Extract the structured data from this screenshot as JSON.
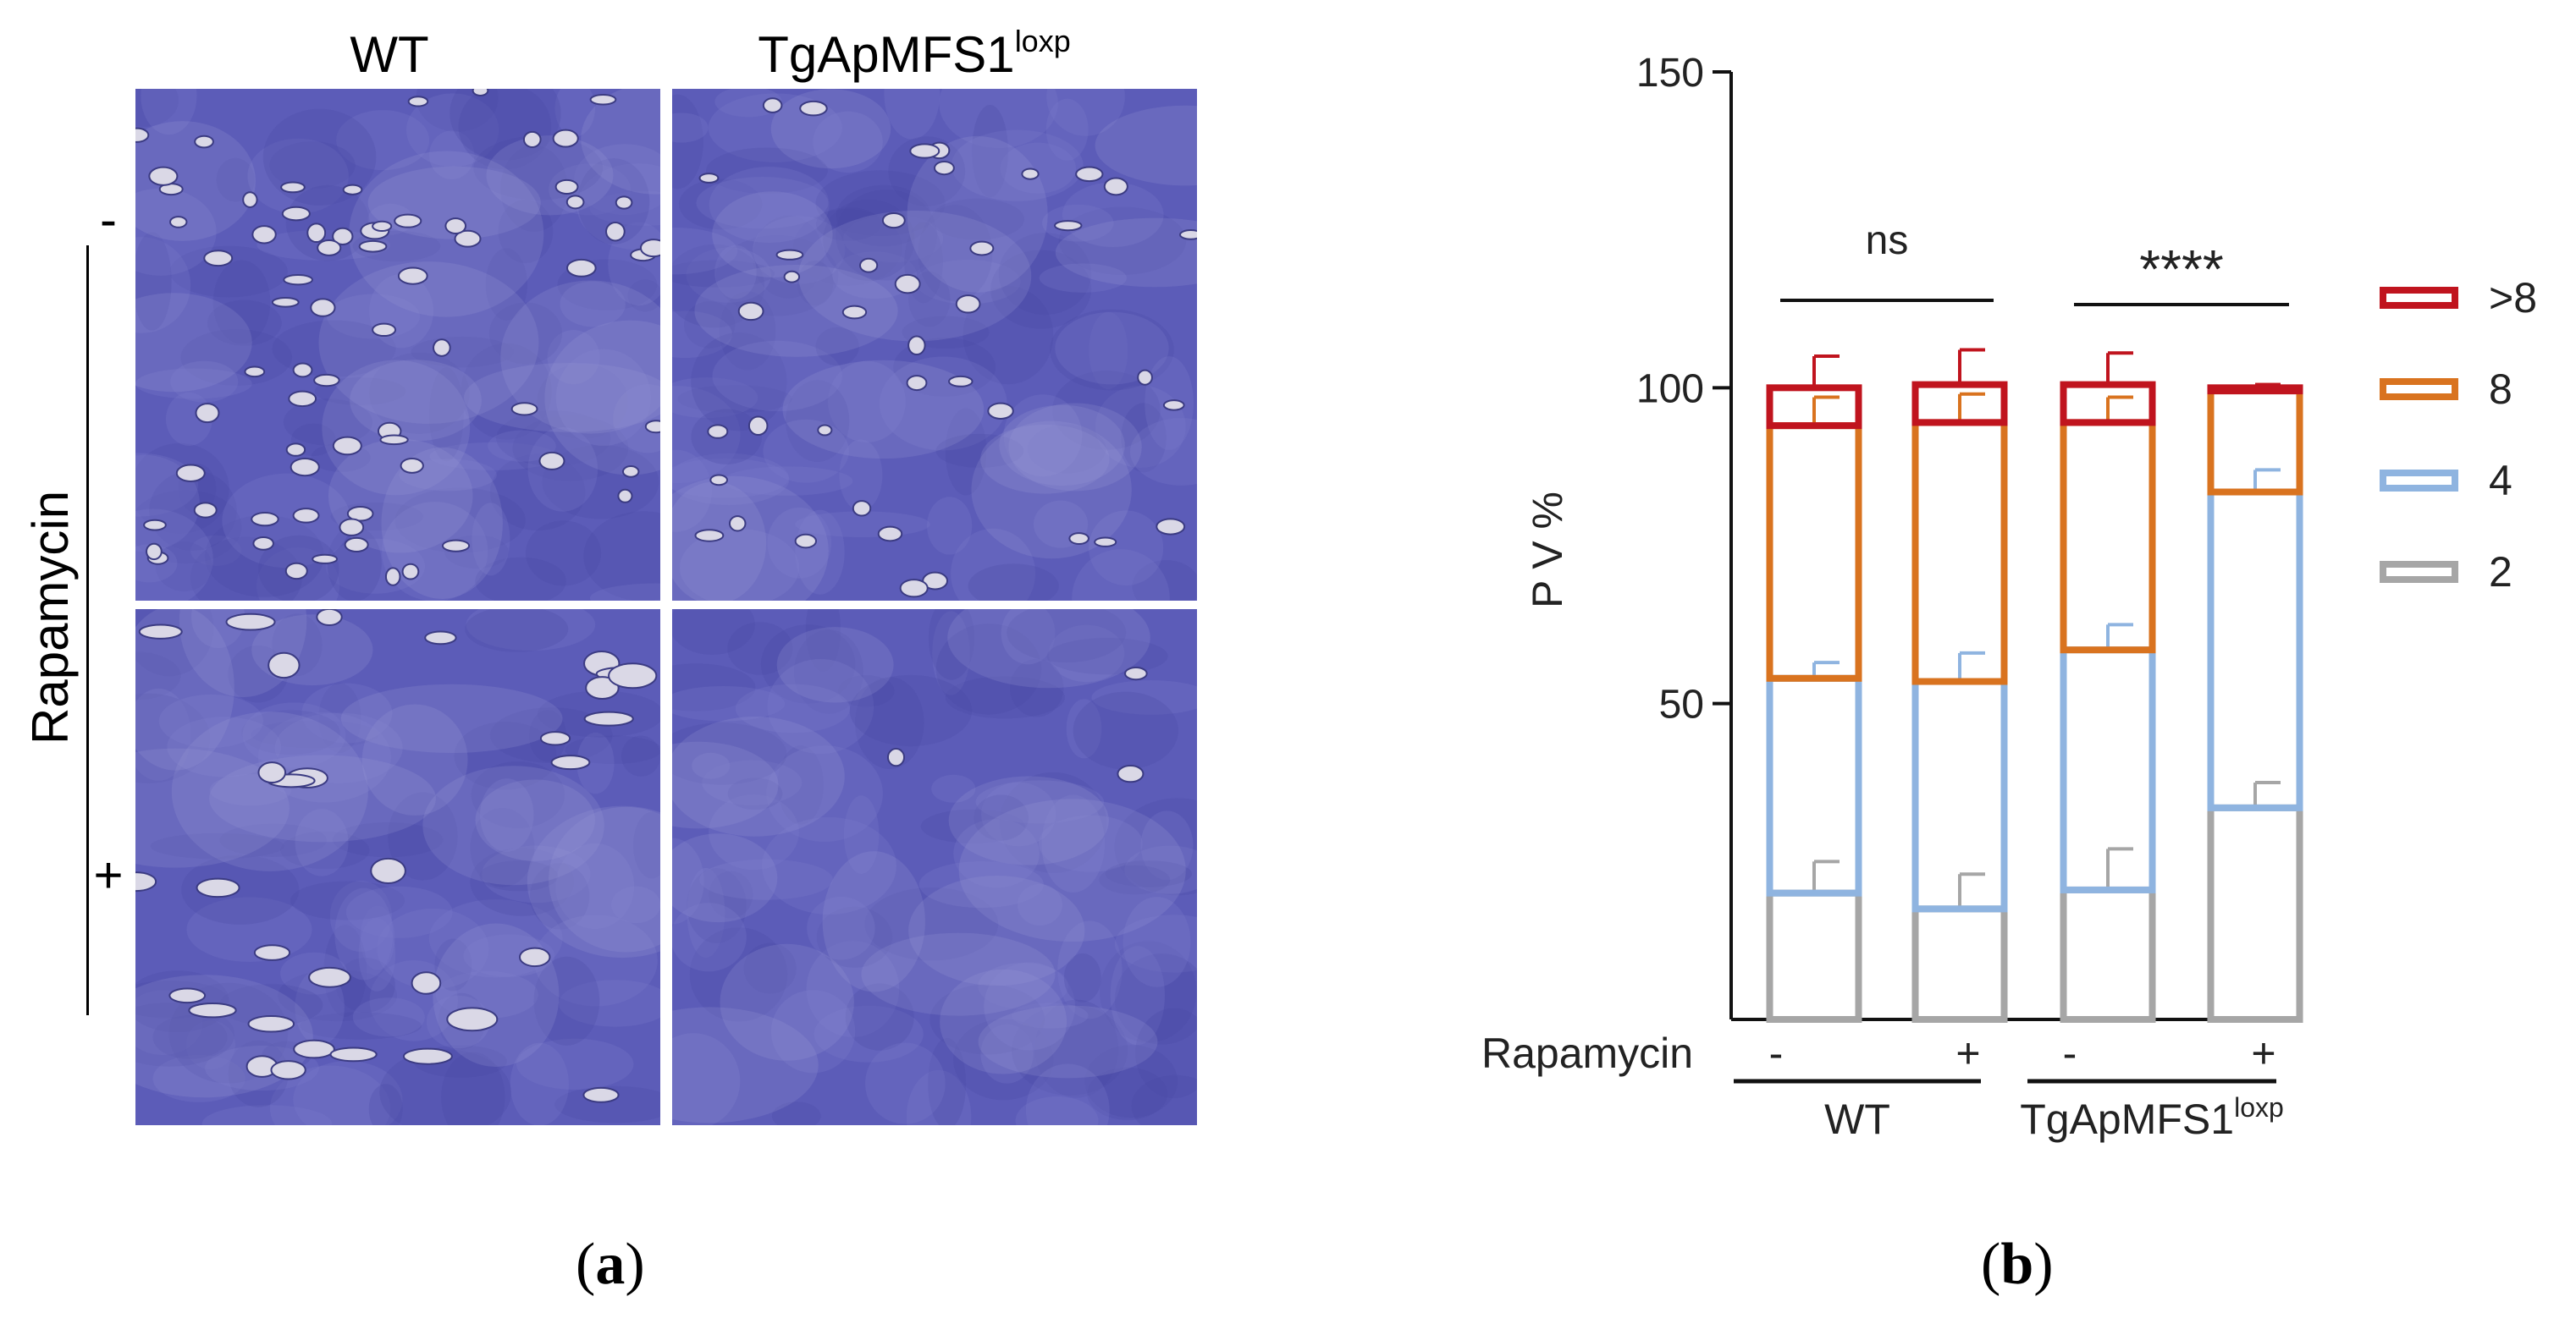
{
  "panel_a": {
    "letter_open": "(",
    "letter": "a",
    "letter_close": ")",
    "columns": [
      {
        "name": "WT",
        "sup": ""
      },
      {
        "name": "TgApMFS1",
        "sup": "loxp"
      }
    ],
    "row_group_label": "Rapamycin",
    "rows": [
      "-",
      "+"
    ],
    "stain_color": "#5c5cb8",
    "vacuole_color": "#dad8e6"
  },
  "panel_b": {
    "letter_open": "(",
    "letter": "b",
    "letter_close": ")"
  },
  "chart_data": {
    "type": "bar",
    "stacked": true,
    "style": "outlined bars",
    "ylabel": "P V %",
    "ylim": [
      0,
      150
    ],
    "yticks": [
      50,
      100,
      150
    ],
    "xlabel": "",
    "x_row_label": "Rapamycin",
    "categories": [
      "-",
      "+",
      "-",
      "+"
    ],
    "groups": [
      {
        "label": "WT",
        "sup": "",
        "categories": [
          0,
          1
        ]
      },
      {
        "label": "TgApMFS1",
        "sup": "loxp",
        "categories": [
          2,
          3
        ]
      }
    ],
    "series": [
      {
        "name": "2",
        "color": "#a6a6a6",
        "values": [
          20,
          17.5,
          20.5,
          33.5
        ],
        "errors": [
          5,
          5.5,
          6.5,
          4
        ]
      },
      {
        "name": "4",
        "color": "#8fb4e0",
        "values": [
          34,
          36,
          38,
          50
        ],
        "errors": [
          2.5,
          4.5,
          4,
          3.5
        ]
      },
      {
        "name": "8",
        "color": "#d9731f",
        "values": [
          40,
          41,
          36,
          16
        ],
        "errors": [
          4.5,
          4.5,
          4,
          1
        ]
      },
      {
        "name": ">8",
        "color": "#c0141e",
        "values": [
          6,
          6,
          6,
          0.5
        ],
        "errors": [
          5,
          5.5,
          5,
          0.5
        ]
      }
    ],
    "annotations": [
      {
        "text": "ns",
        "between": [
          0,
          1
        ]
      },
      {
        "text": "****",
        "between": [
          2,
          3
        ]
      }
    ],
    "legend": {
      "position": "right",
      "order": [
        ">8",
        "8",
        "4",
        "2"
      ]
    },
    "grid": false
  }
}
